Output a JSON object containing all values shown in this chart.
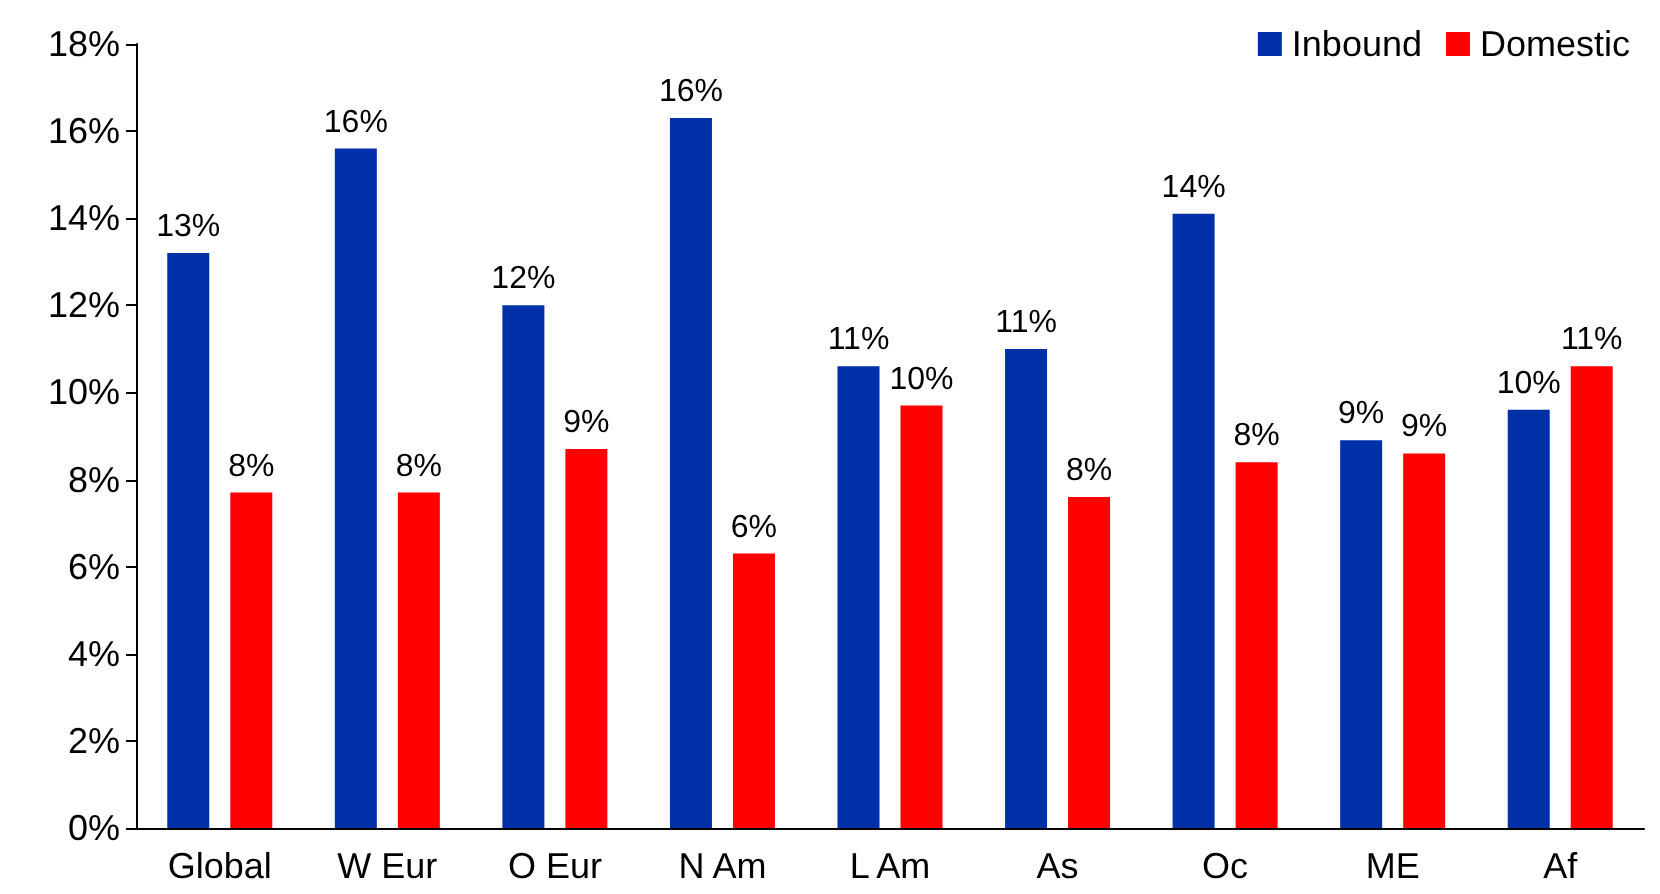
{
  "chart_data": {
    "type": "bar",
    "categories": [
      "Global",
      "W Eur",
      "O Eur",
      "N Am",
      "L Am",
      "As",
      "Oc",
      "ME",
      "Af"
    ],
    "series": [
      {
        "name": "Inbound",
        "color": "#0030a8",
        "values": [
          13.2,
          15.6,
          12.0,
          16.3,
          10.6,
          11.0,
          14.1,
          8.9,
          9.6
        ],
        "value_labels": [
          "13%",
          "16%",
          "12%",
          "16%",
          "11%",
          "11%",
          "14%",
          "9%",
          "10%"
        ]
      },
      {
        "name": "Domestic",
        "color": "#ff0000",
        "values": [
          7.7,
          7.7,
          8.7,
          6.3,
          9.7,
          7.6,
          8.4,
          8.6,
          10.6
        ],
        "value_labels": [
          "8%",
          "8%",
          "9%",
          "6%",
          "10%",
          "8%",
          "8%",
          "9%",
          "11%"
        ]
      }
    ],
    "ylim": [
      0,
      18
    ],
    "yticks": [
      {
        "value": 0,
        "label": "0%"
      },
      {
        "value": 2,
        "label": "2%"
      },
      {
        "value": 4,
        "label": "4%"
      },
      {
        "value": 6,
        "label": "6%"
      },
      {
        "value": 8,
        "label": "8%"
      },
      {
        "value": 10,
        "label": "10%"
      },
      {
        "value": 12,
        "label": "12%"
      },
      {
        "value": 14,
        "label": "14%"
      },
      {
        "value": 16,
        "label": "16%"
      },
      {
        "value": 18,
        "label": "18%"
      }
    ],
    "grid": false,
    "legend": "top right"
  }
}
